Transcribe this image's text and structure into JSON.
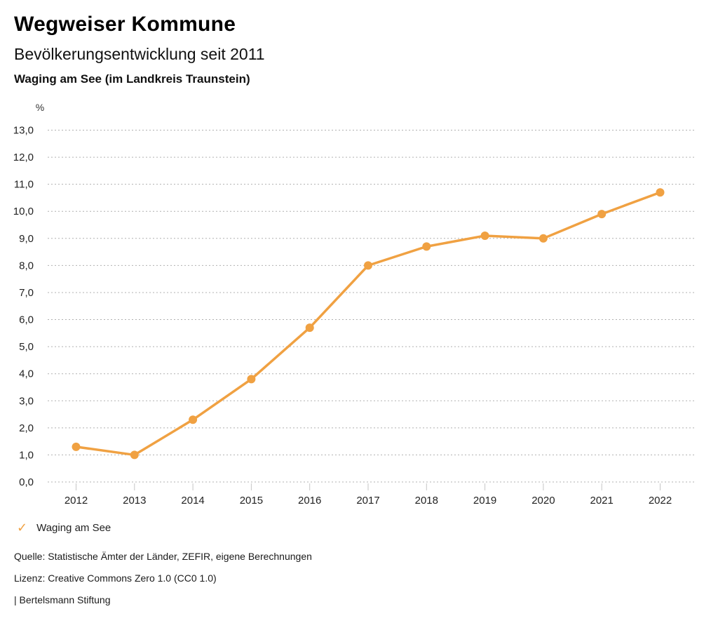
{
  "header": {
    "title": "Wegweiser Kommune",
    "subtitle": "Bevölkerungsentwicklung seit 2011",
    "location": "Waging am See (im Landkreis Traunstein)"
  },
  "chart_data": {
    "type": "line",
    "title": "Bevölkerungsentwicklung seit 2011",
    "subtitle": "Waging am See (im Landkreis Traunstein)",
    "unit_label": "%",
    "categories": [
      "2012",
      "2013",
      "2014",
      "2015",
      "2016",
      "2017",
      "2018",
      "2019",
      "2020",
      "2021",
      "2022"
    ],
    "series": [
      {
        "name": "Waging am See",
        "values": [
          1.3,
          1.0,
          2.3,
          3.8,
          5.7,
          8.0,
          8.7,
          9.1,
          9.0,
          9.9,
          10.7
        ]
      }
    ],
    "ylim": [
      0.0,
      13.0
    ],
    "y_tick_step": 1.0,
    "y_tick_labels": [
      "0,0",
      "1,0",
      "2,0",
      "3,0",
      "4,0",
      "5,0",
      "6,0",
      "7,0",
      "8,0",
      "9,0",
      "10,0",
      "11,0",
      "12,0",
      "13,0"
    ],
    "grid": "horizontal-dashed",
    "legend_position": "bottom-left"
  },
  "legend": {
    "check_icon": "✓",
    "label": "Waging am See"
  },
  "footer": {
    "source": "Quelle: Statistische Ämter der Länder, ZEFIR, eigene Berechnungen",
    "license": "Lizenz: Creative Commons Zero 1.0 (CC0 1.0)",
    "attribution": "| Bertelsmann Stiftung"
  },
  "colors": {
    "accent": "#F0A142",
    "grid": "#b0b0b0",
    "tick": "#c6c6c6",
    "axis_text": "#222222",
    "title_text": "#000000"
  }
}
